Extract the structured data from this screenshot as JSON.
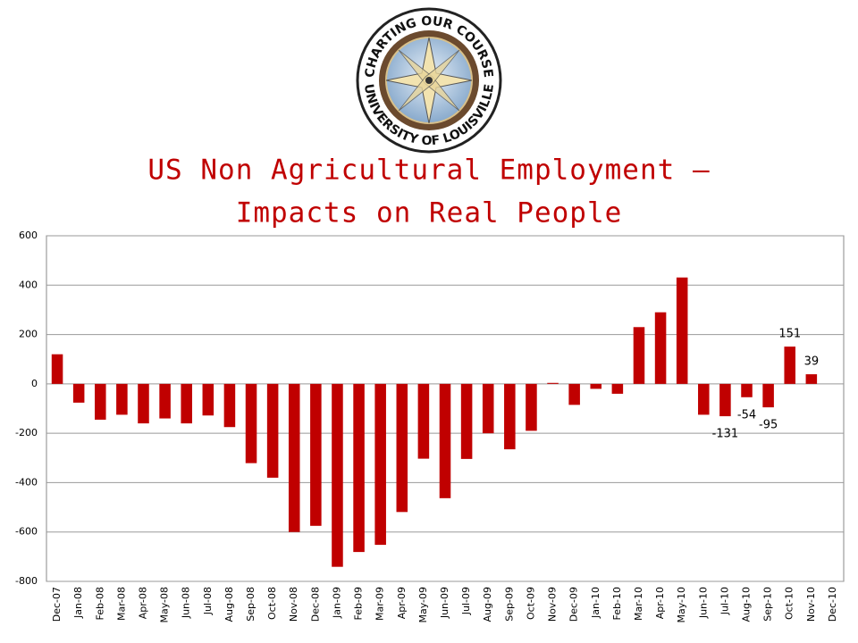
{
  "logo": {
    "top_text": "CHARTING OUR COURSE",
    "bottom_text": "UNIVERSITY OF LOUISVILLE"
  },
  "chart_data": {
    "type": "bar",
    "title": [
      "US Non Agricultural Employment –",
      "Impacts on Real People"
    ],
    "categories": [
      "Dec-07",
      "Jan-08",
      "Feb-08",
      "Mar-08",
      "Apr-08",
      "May-08",
      "Jun-08",
      "Jul-08",
      "Aug-08",
      "Sep-08",
      "Oct-08",
      "Nov-08",
      "Dec-08",
      "Jan-09",
      "Feb-09",
      "Mar-09",
      "Apr-09",
      "May-09",
      "Jun-09",
      "Jul-09",
      "Aug-09",
      "Sep-09",
      "Oct-09",
      "Nov-09",
      "Dec-09",
      "Jan-10",
      "Feb-10",
      "Mar-10",
      "Apr-10",
      "May-10",
      "Jun-10",
      "Jul-10",
      "Aug-10",
      "Sep-10",
      "Oct-10",
      "Nov-10",
      "Dec-10"
    ],
    "values": [
      120,
      -76,
      -145,
      -125,
      -160,
      -140,
      -160,
      -128,
      -175,
      -321,
      -380,
      -600,
      -575,
      -741,
      -681,
      -652,
      -519,
      -303,
      -463,
      -304,
      -200,
      -265,
      -190,
      4,
      -85,
      -20,
      -40,
      230,
      290,
      431,
      -125,
      -131,
      -54,
      -95,
      151,
      39,
      null
    ],
    "value_labels": [
      null,
      null,
      null,
      null,
      null,
      null,
      null,
      null,
      null,
      null,
      null,
      null,
      null,
      null,
      null,
      null,
      null,
      null,
      null,
      null,
      null,
      null,
      null,
      null,
      null,
      null,
      null,
      null,
      null,
      null,
      null,
      "-131",
      "-54",
      "-95",
      "151",
      "39",
      null
    ],
    "color": "#c00000",
    "ylim": [
      -800,
      600
    ],
    "yticks": [
      -800,
      -600,
      -400,
      -200,
      0,
      200,
      400,
      600
    ],
    "grid": true
  }
}
